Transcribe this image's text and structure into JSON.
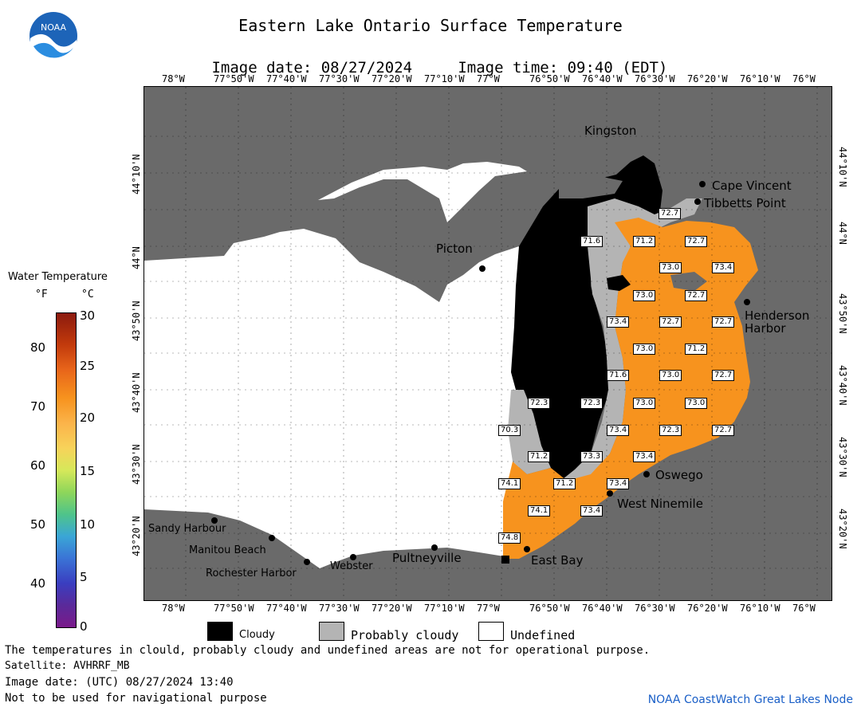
{
  "header": {
    "title": "Eastern Lake Ontario Surface Temperature",
    "image_date": "Image date: 08/27/2024",
    "image_time": "Image time: 09:40 (EDT)"
  },
  "logo": {
    "text": "NOAA"
  },
  "scale": {
    "title": "Water Temperature",
    "unit_f": "°F",
    "unit_c": "°C",
    "f_ticks": [
      "80",
      "70",
      "60",
      "50",
      "40"
    ],
    "c_ticks": [
      "30",
      "25",
      "20",
      "15",
      "10",
      "5",
      "0"
    ]
  },
  "map": {
    "lon_ticks_top": [
      "78°W",
      "77°50'W",
      "77°40'W",
      "77°30'W",
      "77°20'W",
      "77°10'W",
      "77°W",
      "76°50'W",
      "76°40'W",
      "76°30'W",
      "76°20'W",
      "76°10'W",
      "76°W"
    ],
    "lon_ticks_bottom": [
      "78°W",
      "77°50'W",
      "77°40'W",
      "77°30'W",
      "77°20'W",
      "77°10'W",
      "77°W",
      "76°50'W",
      "76°40'W",
      "76°30'W",
      "76°20'W",
      "76°10'W",
      "76°W"
    ],
    "lat_ticks": [
      "44°10'N",
      "44°N",
      "43°50'N",
      "43°40'N",
      "43°30'N",
      "43°20'N"
    ],
    "places": {
      "kingston": "Kingston",
      "picton": "Picton",
      "cape_vincent": "Cape Vincent",
      "tibbetts_point": "Tibbetts Point",
      "henderson_harbor_1": "Henderson",
      "henderson_harbor_2": "Harbor",
      "oswego": "Oswego",
      "west_ninemile": "West Ninemile",
      "east_bay": "East Bay",
      "pultneyville": "Pultneyville",
      "webster": "Webster",
      "rochester_harbor": "Rochester Harbor",
      "manitou_beach": "Manitou Beach",
      "sandy_harbour": "Sandy Harbour"
    },
    "temps": [
      "72.7",
      "71.6",
      "71.2",
      "72.7",
      "73.0",
      "73.4",
      "73.0",
      "72.7",
      "73.4",
      "72.7",
      "72.7",
      "73.0",
      "71.2",
      "71.6",
      "73.0",
      "72.7",
      "72.3",
      "72.3",
      "73.0",
      "73.0",
      "70.3",
      "73.4",
      "72.3",
      "72.7",
      "71.2",
      "73.3",
      "73.4",
      "74.1",
      "71.2",
      "73.4",
      "74.1",
      "73.4",
      "74.8"
    ]
  },
  "legend": {
    "cloudy": "Cloudy",
    "probably_cloudy": "Probably cloudy",
    "undefined": "Undefined",
    "colors": {
      "cloudy": "#000000",
      "probably_cloudy": "#b4b4b4",
      "undefined": "#ffffff",
      "land": "#666666",
      "water_warm": "#f7931e"
    }
  },
  "footer": {
    "disclaimer": "The temperatures in clould, probably cloudy and undefined areas are not for operational purpose.",
    "satellite": "Satellite: AVHRRF_MB",
    "utc_date": "Image date: (UTC) 08/27/2024  13:40",
    "nav_warning": "Not to be used for navigational purpose",
    "credit": "NOAA CoastWatch Great Lakes Node"
  }
}
